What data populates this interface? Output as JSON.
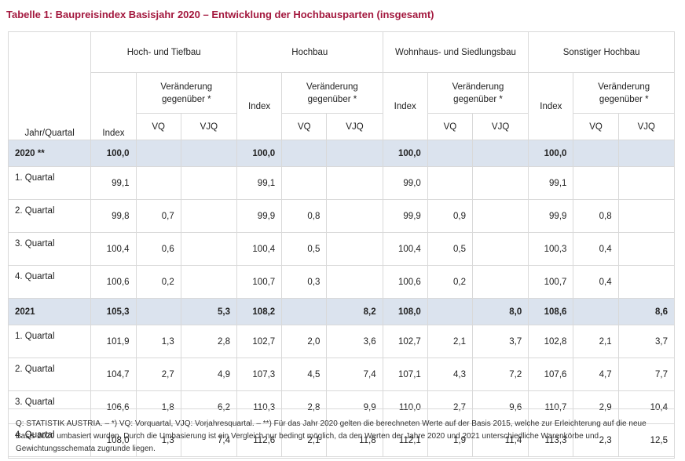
{
  "title": "Tabelle 1: Baupreisindex Basisjahr 2020 – Entwicklung der Hochbausparten (insgesamt)",
  "header": {
    "row_label": "Jahr/Quartal",
    "groups": [
      "Hoch- und Tiefbau",
      "Hochbau",
      "Wohnhaus- und Siedlungsbau",
      "Sonstiger Hochbau"
    ],
    "index_label": "Index",
    "change_label": "Veränderung gegenüber *",
    "vq_label": "VQ",
    "vjq_label": "VJQ"
  },
  "rows": [
    {
      "label": "2020 **",
      "highlight": true,
      "cells": [
        "100,0",
        "",
        "",
        "100,0",
        "",
        "",
        "100,0",
        "",
        "",
        "100,0",
        "",
        ""
      ]
    },
    {
      "label": "1. Quartal",
      "highlight": false,
      "cells": [
        "99,1",
        "",
        "",
        "99,1",
        "",
        "",
        "99,0",
        "",
        "",
        "99,1",
        "",
        ""
      ]
    },
    {
      "label": "2. Quartal",
      "highlight": false,
      "cells": [
        "99,8",
        "0,7",
        "",
        "99,9",
        "0,8",
        "",
        "99,9",
        "0,9",
        "",
        "99,9",
        "0,8",
        ""
      ]
    },
    {
      "label": "3. Quartal",
      "highlight": false,
      "cells": [
        "100,4",
        "0,6",
        "",
        "100,4",
        "0,5",
        "",
        "100,4",
        "0,5",
        "",
        "100,3",
        "0,4",
        ""
      ]
    },
    {
      "label": "4. Quartal",
      "highlight": false,
      "cells": [
        "100,6",
        "0,2",
        "",
        "100,7",
        "0,3",
        "",
        "100,6",
        "0,2",
        "",
        "100,7",
        "0,4",
        ""
      ]
    },
    {
      "label": "2021",
      "highlight": true,
      "cells": [
        "105,3",
        "",
        "5,3",
        "108,2",
        "",
        "8,2",
        "108,0",
        "",
        "8,0",
        "108,6",
        "",
        "8,6"
      ]
    },
    {
      "label": "1. Quartal",
      "highlight": false,
      "cells": [
        "101,9",
        "1,3",
        "2,8",
        "102,7",
        "2,0",
        "3,6",
        "102,7",
        "2,1",
        "3,7",
        "102,8",
        "2,1",
        "3,7"
      ]
    },
    {
      "label": "2. Quartal",
      "highlight": false,
      "cells": [
        "104,7",
        "2,7",
        "4,9",
        "107,3",
        "4,5",
        "7,4",
        "107,1",
        "4,3",
        "7,2",
        "107,6",
        "4,7",
        "7,7"
      ]
    },
    {
      "label": "3. Quartal",
      "highlight": false,
      "cells": [
        "106,6",
        "1,8",
        "6,2",
        "110,3",
        "2,8",
        "9,9",
        "110,0",
        "2,7",
        "9,6",
        "110,7",
        "2,9",
        "10,4"
      ]
    },
    {
      "label": "4. Quartal",
      "highlight": false,
      "cells": [
        "108,0",
        "1,3",
        "7,4",
        "112,6",
        "2,1",
        "11,8",
        "112,1",
        "1,9",
        "11,4",
        "113,3",
        "2,3",
        "12,5"
      ]
    }
  ],
  "footnote": "Q: STATISTIK AUSTRIA. – *) VQ: Vorquartal, VJQ: Vorjahresquartal. – **) Für das Jahr 2020 gelten die berechneten Werte auf der Basis 2015, welche zur Erleichterung auf die neue Basis 2020 umbasiert wurden. Durch die Umbasierung ist ein Vergleich nur bedingt möglich, da den Werten der Jahre 2020 und 2021 unterschiedliche Warenkörbe und Gewichtungsschemata zugrunde liegen."
}
